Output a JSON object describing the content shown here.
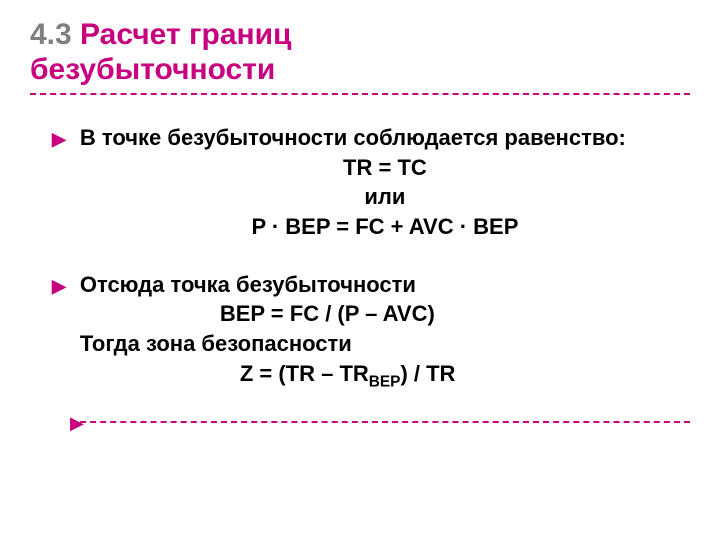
{
  "colors": {
    "accent": "#c6007e",
    "gray": "#7f7f7f",
    "text": "#000000",
    "background": "#ffffff"
  },
  "typography": {
    "title_fontsize": 30,
    "body_fontsize": 22,
    "font_family": "Verdana"
  },
  "title": {
    "section_number": "4.3",
    "line1_rest": " Расчет границ",
    "line2": "безубыточности"
  },
  "block1": {
    "intro": "В точке безубыточности соблюдается равенство:",
    "eq1": "TR = TC",
    "or_word": "или",
    "eq2": "P · BEP = FC + AVC · BEP"
  },
  "block2": {
    "intro": "Отсюда точка безубыточности",
    "eq1": "BEP = FC / (P – AVC)",
    "then": "Тогда зона безопасности",
    "eq2_pre": "Z = (TR – TR",
    "eq2_sub": "BEP",
    "eq2_post": ") / TR"
  }
}
